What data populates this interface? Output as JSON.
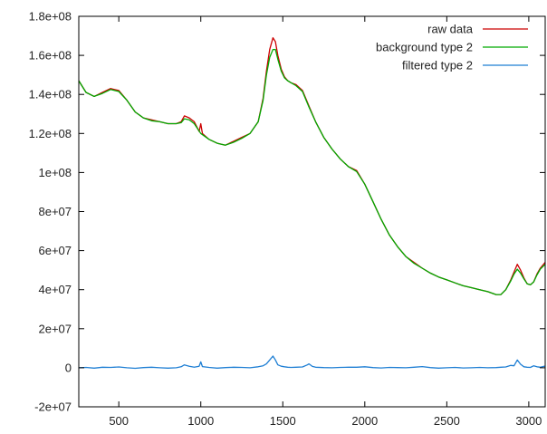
{
  "chart_data": {
    "type": "line",
    "title": "",
    "xlabel": "",
    "ylabel": "",
    "xlim": [
      256,
      3100
    ],
    "ylim": [
      -20000000,
      180000000
    ],
    "x_ticks": [
      500,
      1000,
      1500,
      2000,
      2500,
      3000
    ],
    "x_tick_labels": [
      "500",
      "1000",
      "1500",
      "2000",
      "2500",
      "3000"
    ],
    "y_ticks": [
      -20000000,
      0,
      20000000,
      40000000,
      60000000,
      80000000,
      100000000,
      120000000,
      140000000,
      160000000,
      180000000
    ],
    "y_tick_labels": [
      "-2e+07",
      "0",
      "2e+07",
      "4e+07",
      "6e+07",
      "8e+07",
      "1e+08",
      "1.2e+08",
      "1.4e+08",
      "1.6e+08",
      "1.8e+08"
    ],
    "grid": false,
    "legend_position": "top-right",
    "series": [
      {
        "name": "raw data",
        "color": "#cc0000",
        "x": [
          256,
          300,
          350,
          400,
          450,
          500,
          550,
          600,
          650,
          700,
          750,
          800,
          850,
          880,
          900,
          930,
          960,
          990,
          1000,
          1010,
          1050,
          1100,
          1150,
          1200,
          1250,
          1300,
          1350,
          1380,
          1400,
          1420,
          1440,
          1455,
          1470,
          1490,
          1510,
          1530,
          1550,
          1580,
          1620,
          1660,
          1700,
          1750,
          1800,
          1850,
          1900,
          1950,
          2000,
          2050,
          2100,
          2150,
          2200,
          2250,
          2300,
          2350,
          2400,
          2450,
          2500,
          2550,
          2600,
          2650,
          2700,
          2750,
          2800,
          2830,
          2860,
          2890,
          2910,
          2930,
          2950,
          2970,
          2990,
          3010,
          3030,
          3050,
          3070,
          3100
        ],
        "y": [
          147000000,
          141000000,
          139000000,
          141000000,
          143000000,
          142000000,
          137000000,
          131000000,
          128000000,
          127000000,
          126000000,
          125000000,
          125000000,
          126000000,
          129000000,
          128000000,
          126000000,
          121000000,
          125000000,
          120000000,
          117000000,
          115000000,
          114000000,
          116000000,
          118000000,
          120000000,
          126000000,
          138000000,
          152000000,
          163000000,
          169000000,
          167000000,
          160000000,
          153000000,
          149000000,
          147000000,
          146000000,
          145000000,
          142000000,
          134000000,
          126000000,
          118000000,
          112000000,
          107000000,
          103000000,
          101000000,
          94000000,
          85000000,
          76000000,
          68000000,
          62000000,
          57000000,
          54000000,
          51000000,
          48500000,
          46500000,
          45000000,
          43500000,
          42000000,
          41000000,
          40000000,
          39000000,
          37500000,
          37500000,
          40000000,
          45000000,
          49000000,
          53000000,
          50000000,
          46000000,
          43000000,
          42500000,
          44000000,
          48000000,
          51000000,
          54000000
        ]
      },
      {
        "name": "background type 2",
        "color": "#00aa00",
        "x": [
          256,
          300,
          350,
          400,
          450,
          500,
          550,
          600,
          650,
          700,
          750,
          800,
          850,
          880,
          900,
          930,
          960,
          1000,
          1050,
          1100,
          1150,
          1200,
          1250,
          1300,
          1350,
          1380,
          1400,
          1420,
          1440,
          1455,
          1470,
          1490,
          1510,
          1530,
          1550,
          1580,
          1620,
          1660,
          1700,
          1750,
          1800,
          1850,
          1900,
          1950,
          2000,
          2050,
          2100,
          2150,
          2200,
          2250,
          2300,
          2350,
          2400,
          2450,
          2500,
          2550,
          2600,
          2650,
          2700,
          2750,
          2800,
          2830,
          2860,
          2890,
          2910,
          2930,
          2950,
          2970,
          2990,
          3010,
          3030,
          3050,
          3070,
          3100
        ],
        "y": [
          147000000,
          141000000,
          139000000,
          140500000,
          142500000,
          141500000,
          137000000,
          131000000,
          128000000,
          126500000,
          126000000,
          125000000,
          125000000,
          125500000,
          127500000,
          127000000,
          125000000,
          120000000,
          117000000,
          115000000,
          114000000,
          115500000,
          117500000,
          120000000,
          126000000,
          137000000,
          150000000,
          159000000,
          163000000,
          163000000,
          158000000,
          152000000,
          148500000,
          147000000,
          146000000,
          144500000,
          141500000,
          133500000,
          126000000,
          118000000,
          112000000,
          107000000,
          103000000,
          100500000,
          94000000,
          85000000,
          76000000,
          68000000,
          62000000,
          57000000,
          53500000,
          51000000,
          48500000,
          46500000,
          45000000,
          43500000,
          42000000,
          41000000,
          40000000,
          39000000,
          37500000,
          37500000,
          40000000,
          44500000,
          48000000,
          50500000,
          48500000,
          45500000,
          43000000,
          42500000,
          44000000,
          47500000,
          50500000,
          53000000
        ]
      },
      {
        "name": "filtered type 2",
        "color": "#1f7fd4",
        "x": [
          256,
          300,
          350,
          400,
          450,
          500,
          550,
          600,
          650,
          700,
          750,
          800,
          850,
          880,
          900,
          930,
          960,
          990,
          1000,
          1010,
          1050,
          1100,
          1150,
          1200,
          1250,
          1300,
          1350,
          1380,
          1400,
          1420,
          1440,
          1455,
          1470,
          1490,
          1510,
          1530,
          1550,
          1580,
          1620,
          1650,
          1660,
          1680,
          1700,
          1750,
          1800,
          1850,
          1900,
          1950,
          2000,
          2050,
          2100,
          2150,
          2200,
          2250,
          2300,
          2350,
          2400,
          2450,
          2500,
          2550,
          2600,
          2650,
          2700,
          2750,
          2800,
          2830,
          2860,
          2890,
          2910,
          2930,
          2950,
          2970,
          2990,
          3010,
          3030,
          3050,
          3070,
          3100
        ],
        "y": [
          0,
          200000,
          -200000,
          300000,
          200000,
          400000,
          0,
          -300000,
          100000,
          300000,
          0,
          -200000,
          0,
          500000,
          1500000,
          800000,
          300000,
          800000,
          3000000,
          600000,
          200000,
          -200000,
          100000,
          300000,
          200000,
          0,
          500000,
          1000000,
          2000000,
          4000000,
          6000000,
          4000000,
          1500000,
          800000,
          500000,
          300000,
          200000,
          300000,
          400000,
          1500000,
          2000000,
          700000,
          300000,
          100000,
          0,
          200000,
          300000,
          300000,
          500000,
          100000,
          -100000,
          200000,
          100000,
          0,
          300000,
          600000,
          100000,
          -200000,
          0,
          200000,
          -100000,
          0,
          200000,
          0,
          100000,
          300000,
          400000,
          1200000,
          1000000,
          4000000,
          1800000,
          500000,
          300000,
          200000,
          1000000,
          500000,
          300000,
          900000
        ]
      }
    ]
  }
}
